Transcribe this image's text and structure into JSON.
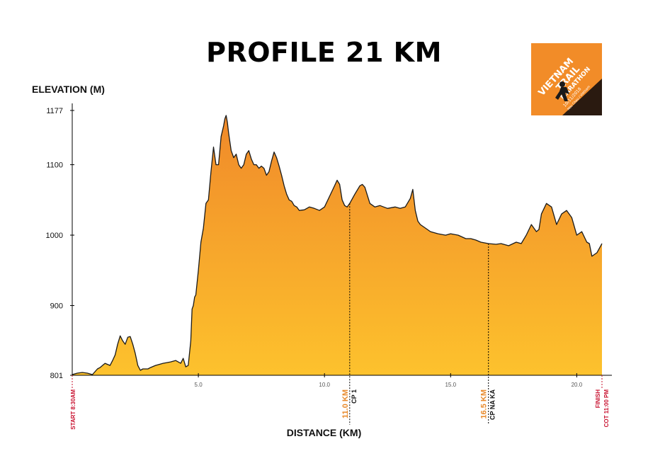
{
  "colors": {
    "fill_top": "#f0892a",
    "fill_bottom": "#fdc22d",
    "line": "#1a1a1a",
    "start_finish": "#c8102e",
    "checkpoint_km": "#e8892a",
    "checkpoint_name": "#111111",
    "logo_bg": "#f28c28"
  },
  "logo": {
    "line1": "VIETNAM",
    "line2": "TRAIL",
    "line3": "MARATHON",
    "date": "10/11/2018",
    "place": "Moc Chau / Vietnam",
    "icon": "runner-icon"
  },
  "chart_data": {
    "type": "area",
    "title": "PROFILE 21 KM",
    "xlabel": "DISTANCE (KM)",
    "ylabel": "ELEVATION (M)",
    "xlim": [
      0,
      21
    ],
    "ylim": [
      801,
      1177
    ],
    "x_ticks": [
      5.0,
      10.0,
      15.0,
      20.0
    ],
    "x_tick_labels": [
      "5.0",
      "10.0",
      "15.0",
      "20.0"
    ],
    "y_ticks": [
      801,
      900,
      1000,
      1100,
      1177
    ],
    "y_tick_labels": [
      "801",
      "900",
      "1000",
      "1100",
      "1177"
    ],
    "grid": false,
    "series": [
      {
        "x": [
          0,
          0.2,
          0.4,
          0.6,
          0.8,
          1.0,
          1.1,
          1.3,
          1.5,
          1.6,
          1.7,
          1.8,
          1.9,
          2.0,
          2.1,
          2.2,
          2.3,
          2.4,
          2.5,
          2.6,
          2.7,
          2.8,
          2.9,
          3.0,
          3.1,
          3.3,
          3.6,
          3.9,
          4.1,
          4.3,
          4.4,
          4.5,
          4.6,
          4.7,
          4.75,
          4.8,
          4.85,
          4.9,
          5.0,
          5.1,
          5.2,
          5.3,
          5.4,
          5.5,
          5.6,
          5.7,
          5.8,
          5.9,
          6.0,
          6.05,
          6.1,
          6.15,
          6.2,
          6.3,
          6.4,
          6.5,
          6.6,
          6.7,
          6.8,
          6.9,
          7.0,
          7.1,
          7.2,
          7.3,
          7.4,
          7.5,
          7.6,
          7.7,
          7.8,
          7.9,
          8.0,
          8.1,
          8.2,
          8.3,
          8.4,
          8.5,
          8.6,
          8.7,
          8.8,
          8.9,
          9.0,
          9.2,
          9.4,
          9.6,
          9.8,
          10.0,
          10.2,
          10.4,
          10.5,
          10.6,
          10.7,
          10.8,
          10.9,
          11.0,
          11.2,
          11.4,
          11.5,
          11.6,
          11.8,
          12.0,
          12.2,
          12.5,
          12.8,
          13.0,
          13.2,
          13.4,
          13.5,
          13.6,
          13.7,
          13.8,
          14.0,
          14.2,
          14.5,
          14.8,
          15.0,
          15.3,
          15.6,
          15.8,
          16.0,
          16.2,
          16.5,
          16.8,
          17.0,
          17.3,
          17.6,
          17.8,
          18.0,
          18.2,
          18.4,
          18.5,
          18.6,
          18.8,
          19.0,
          19.2,
          19.4,
          19.6,
          19.8,
          20.0,
          20.2,
          20.4,
          20.5,
          20.6,
          20.8,
          21.0
        ],
        "values": [
          802,
          804,
          805,
          804,
          802,
          810,
          812,
          818,
          815,
          822,
          830,
          845,
          857,
          850,
          845,
          855,
          856,
          845,
          832,
          815,
          808,
          810,
          810,
          810,
          812,
          815,
          818,
          820,
          822,
          818,
          825,
          813,
          815,
          850,
          895,
          900,
          912,
          915,
          950,
          990,
          1010,
          1045,
          1050,
          1090,
          1125,
          1100,
          1100,
          1140,
          1155,
          1165,
          1170,
          1160,
          1145,
          1120,
          1110,
          1115,
          1100,
          1095,
          1100,
          1115,
          1120,
          1108,
          1100,
          1100,
          1095,
          1098,
          1095,
          1085,
          1090,
          1105,
          1118,
          1110,
          1098,
          1085,
          1070,
          1058,
          1050,
          1048,
          1042,
          1040,
          1035,
          1036,
          1040,
          1038,
          1035,
          1040,
          1055,
          1070,
          1078,
          1072,
          1050,
          1042,
          1040,
          1045,
          1058,
          1070,
          1072,
          1068,
          1045,
          1040,
          1042,
          1038,
          1040,
          1038,
          1040,
          1052,
          1065,
          1035,
          1020,
          1015,
          1010,
          1005,
          1002,
          1000,
          1002,
          1000,
          995,
          995,
          993,
          990,
          988,
          987,
          988,
          985,
          990,
          988,
          1000,
          1015,
          1005,
          1008,
          1030,
          1045,
          1040,
          1015,
          1030,
          1035,
          1025,
          1000,
          1005,
          990,
          988,
          970,
          975,
          988
        ]
      }
    ],
    "annotations": [
      {
        "x": 0,
        "lines": [
          "START 8:30AM"
        ],
        "style": "start_finish"
      },
      {
        "x": 11.0,
        "lines": [
          "11.0 KM",
          "CP 1"
        ],
        "style": "checkpoint"
      },
      {
        "x": 16.5,
        "lines": [
          "16.5 KM",
          "CP NA KA"
        ],
        "style": "checkpoint"
      },
      {
        "x": 21.0,
        "lines": [
          "FINISH",
          "COT 11:00 PM"
        ],
        "style": "start_finish"
      }
    ]
  }
}
